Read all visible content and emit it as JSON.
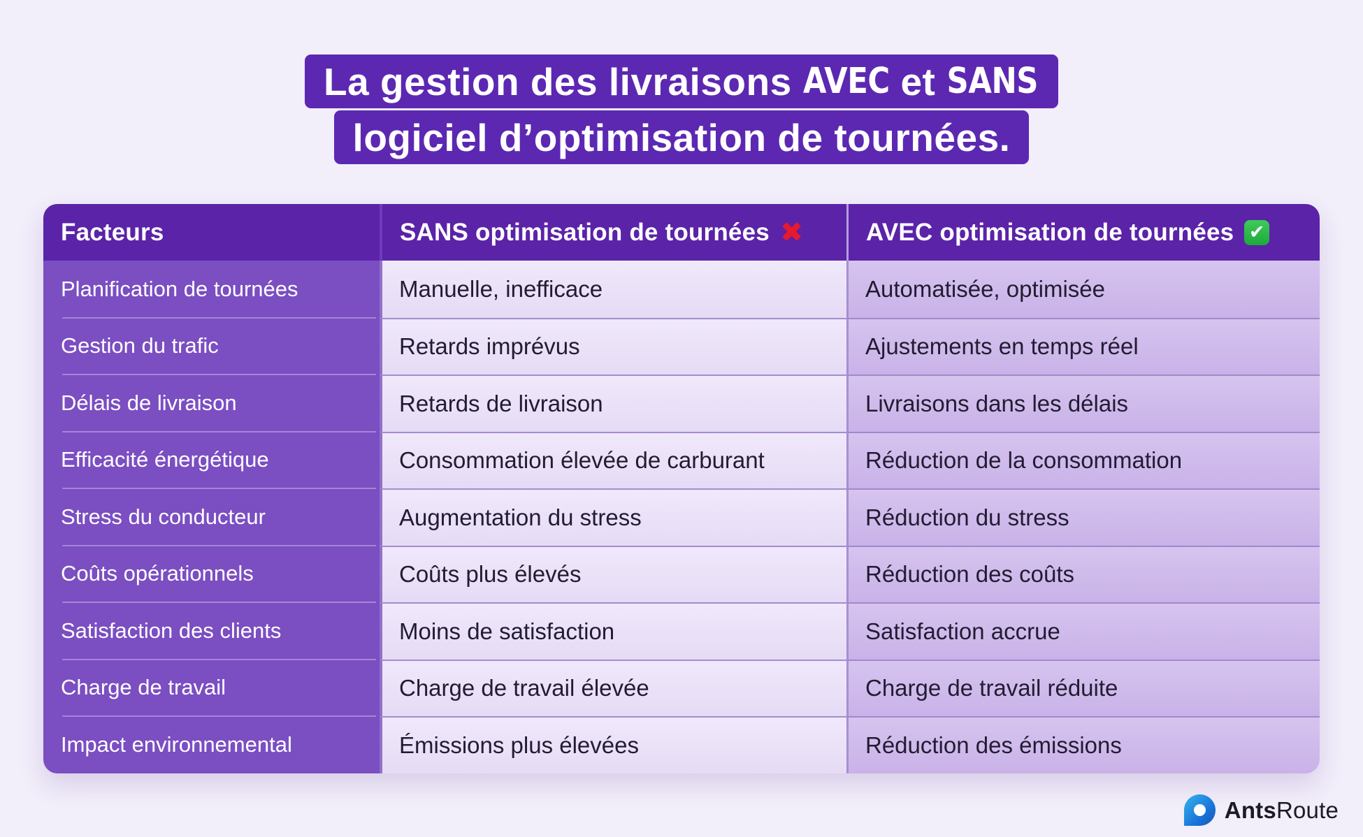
{
  "title": {
    "line1": {
      "prefix": "La gestion des livraisons",
      "word_avec": "AVEC",
      "connector": "et",
      "word_sans": "SANS"
    },
    "line2": "logiciel d’optimisation de tournées."
  },
  "table": {
    "headers": [
      {
        "label": "Facteurs",
        "icon": null,
        "icon_glyph": null
      },
      {
        "label": "SANS optimisation de tournées",
        "icon": "red-cross-icon",
        "icon_glyph": "✖"
      },
      {
        "label": "AVEC optimisation de tournées",
        "icon": "green-check-icon",
        "icon_glyph": "✔"
      }
    ],
    "rows": [
      {
        "factor": "Planification de tournées",
        "sans": "Manuelle, inefficace",
        "avec": "Automatisée, optimisée"
      },
      {
        "factor": "Gestion du trafic",
        "sans": "Retards imprévus",
        "avec": "Ajustements en temps réel"
      },
      {
        "factor": "Délais de livraison",
        "sans": "Retards de livraison",
        "avec": "Livraisons dans les délais"
      },
      {
        "factor": "Efficacité énergétique",
        "sans": "Consommation élevée de carburant",
        "avec": "Réduction de la consommation"
      },
      {
        "factor": "Stress du conducteur",
        "sans": "Augmentation du stress",
        "avec": "Réduction du stress"
      },
      {
        "factor": "Coûts opérationnels",
        "sans": "Coûts plus élevés",
        "avec": "Réduction des coûts"
      },
      {
        "factor": "Satisfaction des clients",
        "sans": "Moins de satisfaction",
        "avec": "Satisfaction accrue"
      },
      {
        "factor": "Charge de travail",
        "sans": "Charge de travail élevée",
        "avec": "Charge de travail réduite"
      },
      {
        "factor": "Impact environnemental",
        "sans": "Émissions plus élevées",
        "avec": "Réduction des émissions"
      }
    ]
  },
  "footer": {
    "brand_bold": "Ants",
    "brand_light": "Route"
  },
  "colors": {
    "page_bg": "#f2eefa",
    "title_bg": "#5c28b2",
    "header_bg": "#5a23a8",
    "factor_col_bg": "#7b4ec2",
    "sans_col_bg": "#e9dff6",
    "avec_col_bg": "#ccb6e9",
    "cross_red": "#e8192c",
    "check_green": "#25b244",
    "logo_blue_light": "#35b5ee",
    "logo_blue_dark": "#1257b8",
    "dark_text": "#221c33"
  }
}
